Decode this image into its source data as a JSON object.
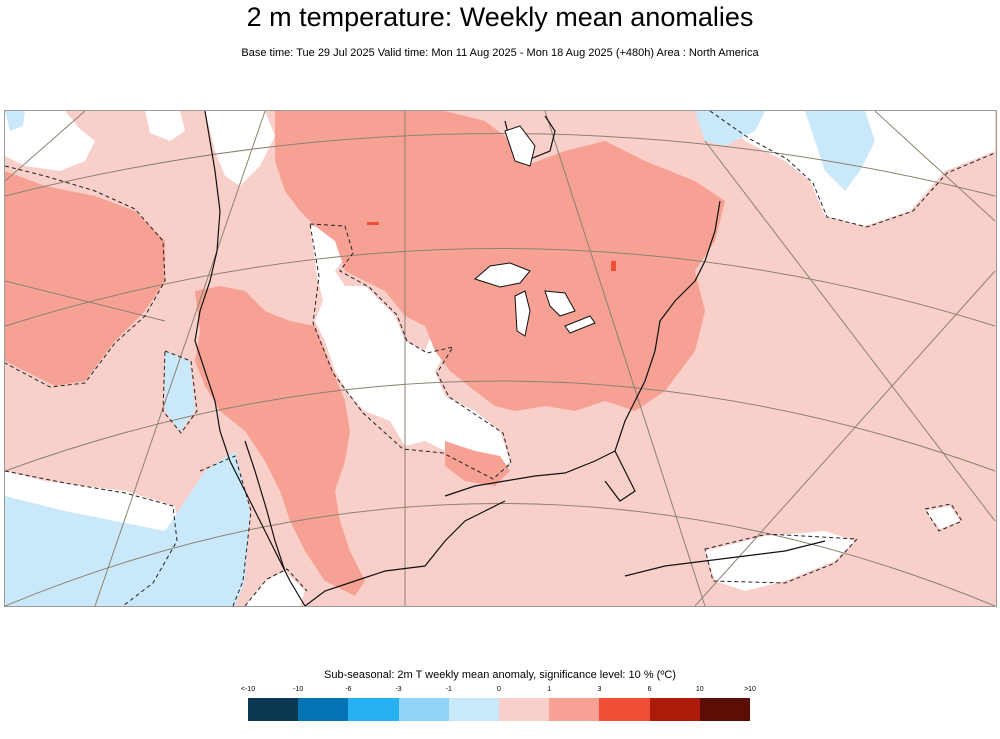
{
  "header": {
    "title": "2 m temperature: Weekly mean anomalies",
    "subtitle": "Base time: Tue 29 Jul 2025 Valid time: Mon 11 Aug 2025 - Mon 18 Aug 2025 (+480h) Area : North America"
  },
  "map": {
    "region": "North America",
    "variable": "2m T weekly mean anomaly",
    "significance_contour_style": "dashed"
  },
  "legend": {
    "title": "Sub-seasonal: 2m T weekly mean anomaly, significance level: 10 % (ºC)",
    "ticks": [
      "<-10",
      "-10",
      "-6",
      "-3",
      "-1",
      "0",
      "1",
      "3",
      "6",
      "10",
      ">10"
    ],
    "colors": [
      "#0b3954",
      "#0572b4",
      "#27b1f2",
      "#8fd3f6",
      "#c9e9fa",
      "#f9cfca",
      "#f6a193",
      "#f24d35",
      "#ad1a0a",
      "#5b0d06"
    ]
  }
}
